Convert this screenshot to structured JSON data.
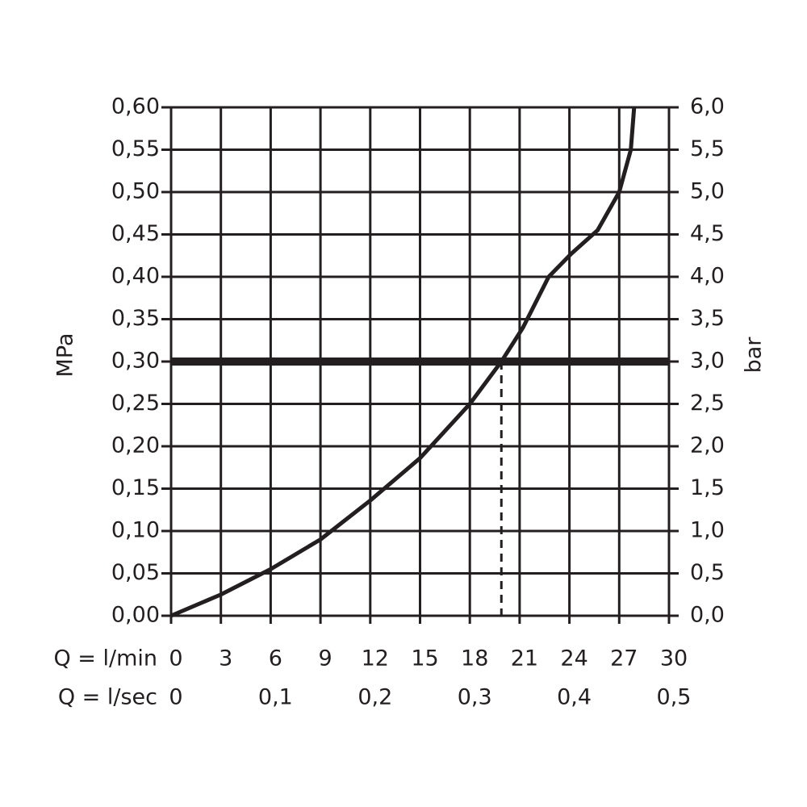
{
  "chart_data": {
    "type": "line",
    "y_label": "MPa",
    "y2_label": "bar",
    "x_label": "Q = l/min",
    "x2_label": "Q = l/sec",
    "x": [
      0,
      3,
      6,
      9,
      12,
      15,
      18,
      19.9,
      21.2,
      22.75,
      24.1,
      25.7,
      27.0,
      27.7,
      27.9
    ],
    "series": [
      {
        "color": "#231f20",
        "values": [
          0,
          0.025,
          0.055,
          0.09,
          0.136,
          0.186,
          0.25,
          0.3,
          0.34,
          0.4,
          0.427,
          0.455,
          0.5,
          0.55,
          0.6
        ]
      }
    ],
    "reference": {
      "x": 19.9,
      "y": 0.3
    },
    "xlim": [
      0,
      30
    ],
    "xticks": [
      0,
      3,
      6,
      9,
      12,
      15,
      18,
      21,
      24,
      27,
      30
    ],
    "x2lim": [
      0,
      0.5
    ],
    "x2ticks": [
      0,
      {
        "value": 0.1,
        "label": "0,1"
      },
      {
        "value": 0.2,
        "label": "0,2"
      },
      {
        "value": 0.3,
        "label": "0,3"
      },
      {
        "value": 0.4,
        "label": "0,4"
      },
      {
        "value": 0.5,
        "label": "0,5"
      }
    ],
    "ylim": [
      0,
      0.6
    ],
    "yticks": [
      {
        "value": 0,
        "label": "0,00"
      },
      {
        "value": 0.05,
        "label": "0,05"
      },
      {
        "value": 0.1,
        "label": "0,10"
      },
      {
        "value": 0.15,
        "label": "0,15"
      },
      {
        "value": 0.2,
        "label": "0,20"
      },
      {
        "value": 0.25,
        "label": "0,25"
      },
      {
        "value": 0.3,
        "label": "0,30"
      },
      {
        "value": 0.35,
        "label": "0,35"
      },
      {
        "value": 0.4,
        "label": "0,40"
      },
      {
        "value": 0.45,
        "label": "0,45"
      },
      {
        "value": 0.5,
        "label": "0,50"
      },
      {
        "value": 0.55,
        "label": "0,55"
      },
      {
        "value": 0.6,
        "label": "0,60"
      }
    ],
    "y2lim": [
      0,
      6
    ],
    "y2ticks": [
      {
        "value": 0,
        "label": "0,0"
      },
      {
        "value": 0.5,
        "label": "0,5"
      },
      {
        "value": 1,
        "label": "1,0"
      },
      {
        "value": 1.5,
        "label": "1,5"
      },
      {
        "value": 2,
        "label": "2,0"
      },
      {
        "value": 2.5,
        "label": "2,5"
      },
      {
        "value": 3,
        "label": "3,0"
      },
      {
        "value": 3.5,
        "label": "3,5"
      },
      {
        "value": 4,
        "label": "4,0"
      },
      {
        "value": 4.5,
        "label": "4,5"
      },
      {
        "value": 5,
        "label": "5,0"
      },
      {
        "value": 5.5,
        "label": "5,5"
      },
      {
        "value": 6,
        "label": "6,0"
      }
    ],
    "grid": true
  }
}
